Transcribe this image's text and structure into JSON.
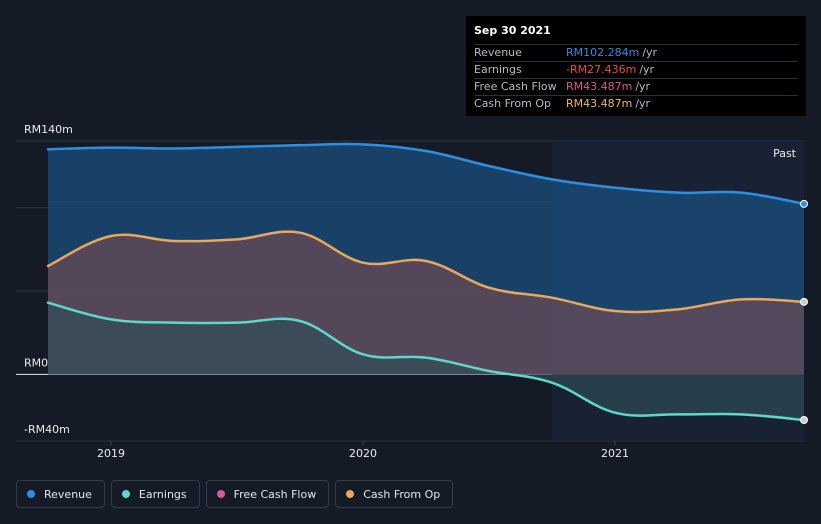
{
  "tooltip": {
    "date": "Sep 30 2021",
    "rows": [
      {
        "label": "Revenue",
        "value": "RM102.284m",
        "unit": "/yr",
        "color": "#2e8fe0"
      },
      {
        "label": "Earnings",
        "value": "-RM27.436m",
        "unit": "/yr",
        "color": "#e64c4c"
      },
      {
        "label": "Free Cash Flow",
        "value": "RM43.487m",
        "unit": "/yr",
        "color": "#d65a9a"
      },
      {
        "label": "Cash From Op",
        "value": "RM43.487m",
        "unit": "/yr",
        "color": "#f0b463"
      }
    ]
  },
  "legend": [
    {
      "label": "Revenue",
      "color": "#2e8fe0"
    },
    {
      "label": "Earnings",
      "color": "#5fd8c8"
    },
    {
      "label": "Free Cash Flow",
      "color": "#d65a9a"
    },
    {
      "label": "Cash From Op",
      "color": "#e8a95c"
    }
  ],
  "chart_data": {
    "type": "area",
    "x_unit": "year",
    "ylim": [
      -40,
      140
    ],
    "xlim": [
      2018.75,
      2021.75
    ],
    "y_tick_labels": [
      {
        "value": 140,
        "label": "RM140m"
      },
      {
        "value": 0,
        "label": "RM0"
      },
      {
        "value": -40,
        "label": "-RM40m"
      }
    ],
    "x_tick_labels": [
      {
        "value": 2019,
        "label": "2019"
      },
      {
        "value": 2020,
        "label": "2020"
      },
      {
        "value": 2021,
        "label": "2021"
      }
    ],
    "past_label": "Past",
    "past_start": 2020.75,
    "series": [
      {
        "name": "Revenue",
        "color": "#2e8fe0",
        "x": [
          2018.75,
          2019.0,
          2019.25,
          2019.5,
          2019.75,
          2020.0,
          2020.25,
          2020.5,
          2020.75,
          2021.0,
          2021.25,
          2021.5,
          2021.75
        ],
        "values": [
          135,
          136,
          135.5,
          136.5,
          137.5,
          138,
          134,
          125,
          117,
          112,
          109,
          109,
          102.3
        ]
      },
      {
        "name": "Cash From Op",
        "color": "#e8a95c",
        "x": [
          2018.75,
          2019.0,
          2019.25,
          2019.5,
          2019.75,
          2020.0,
          2020.25,
          2020.5,
          2020.75,
          2021.0,
          2021.25,
          2021.5,
          2021.75
        ],
        "values": [
          65,
          83,
          80,
          81,
          85,
          67,
          68,
          52,
          46,
          38,
          39,
          45,
          43.5
        ]
      },
      {
        "name": "Earnings",
        "color": "#5fd8c8",
        "x": [
          2018.75,
          2019.0,
          2019.25,
          2019.5,
          2019.75,
          2020.0,
          2020.25,
          2020.5,
          2020.75,
          2021.0,
          2021.25,
          2021.5,
          2021.75
        ],
        "values": [
          43,
          33,
          31,
          31,
          32,
          12,
          10,
          2,
          -5,
          -23,
          -24,
          -24,
          -27.4
        ]
      }
    ]
  }
}
